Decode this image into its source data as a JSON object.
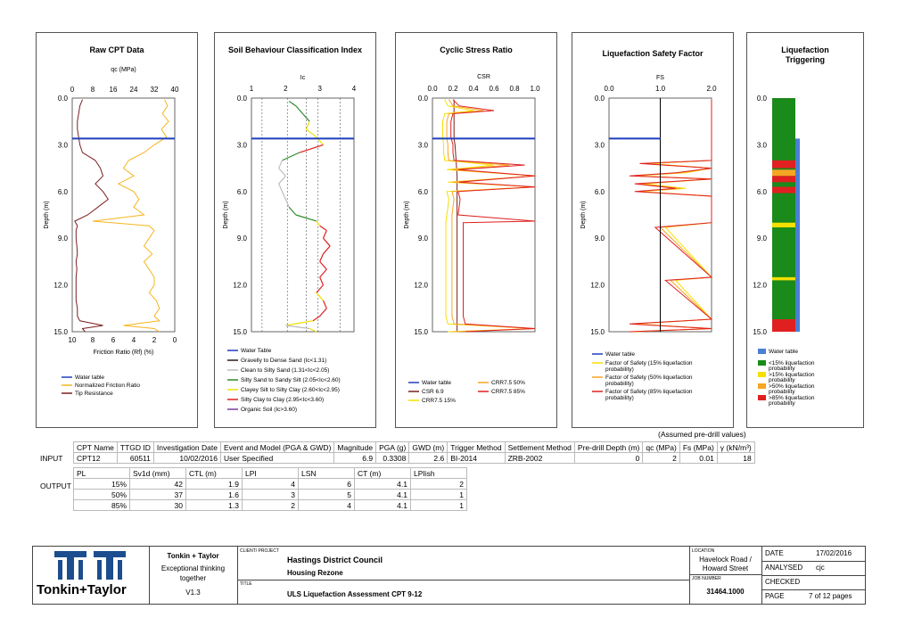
{
  "panels": {
    "raw": {
      "title": "Raw CPT Data",
      "top_label": "qc (MPa)",
      "top_ticks": [
        "0",
        "8",
        "16",
        "24",
        "32",
        "40"
      ],
      "bottom_ticks": [
        "10",
        "8",
        "6",
        "4",
        "2",
        "0"
      ],
      "bottom_label": "Friction Ratio (Rf) (%)",
      "legend": [
        "Water table",
        "Normalized Friction Ratio",
        "Tip Resistance"
      ]
    },
    "sbt": {
      "title": "Soil Behaviour Classification Index",
      "top_label": "Ic",
      "top_ticks": [
        "1",
        "2",
        "3",
        "4"
      ],
      "legend": [
        "Water Table",
        "Gravelly to Dense Sand (Ic<1.31)",
        "Clean to Silty Sand (1.31<Ic<2.05)",
        "Silty Sand to Sandy Silt (2.05<Ic<2.60)",
        "Clayey Silt to Silty Clay (2.60<Ic<2.95)",
        "Silty Clay to Clay (2.95<Ic<3.60)",
        "Organic Soil (Ic>3.60)"
      ]
    },
    "csr": {
      "title": "Cyclic Stress Ratio",
      "top_label": "CSR",
      "top_ticks": [
        "0.0",
        "0.2",
        "0.4",
        "0.6",
        "0.8",
        "1.0"
      ],
      "legend": [
        "Water table",
        "CSR 6.9",
        "CRR7.5 15%",
        "CRR7.5 50%",
        "CRR7.5 85%"
      ]
    },
    "fs": {
      "title": "Liquefaction Safety Factor",
      "top_label": "FS",
      "top_ticks": [
        "0.0",
        "1.0",
        "2.0"
      ],
      "legend": [
        "Water table",
        "Factor of Safety (15% liquefaction probability)",
        "Factor of Safety (50% liquefaction probability)",
        "Factor of Safety (85% liquefaction probability)"
      ]
    },
    "trig": {
      "title_lines": [
        "Liquefaction",
        "Triggering"
      ],
      "legend": [
        "Water table",
        "<15% liquefaction probability",
        ">15% liquefaction probability",
        ">50% liquefaction probability",
        ">85% liquefaction probability"
      ]
    }
  },
  "depth_axis": {
    "label": "Depth (m)",
    "ticks": [
      "0.0",
      "3.0",
      "6.0",
      "9.0",
      "12.0",
      "15.0"
    ],
    "range": [
      0,
      15
    ],
    "water_table": 2.6
  },
  "colors": {
    "water": "#1f3fbf",
    "tip": "#7a1f1f",
    "friction": "#f5b520",
    "fs15": "#f7e000",
    "fs50": "#f5a623",
    "fs85": "#e02020",
    "trig_base": "#1a8a1a",
    "trig_wt": "#4a7fd6"
  },
  "chart_data": [
    {
      "type": "line",
      "title": "Raw CPT Data",
      "xlabel": "qc (MPa)",
      "x2label": "Friction Ratio (Rf) (%)",
      "ylabel": "Depth (m)",
      "xlim": [
        0,
        40
      ],
      "x2lim": [
        10,
        0
      ],
      "ylim": [
        15,
        0
      ],
      "series": [
        {
          "name": "Tip Resistance",
          "depth": [
            0.1,
            0.5,
            1.0,
            1.5,
            2.0,
            2.5,
            3.0,
            3.5,
            4.0,
            4.5,
            5.0,
            5.5,
            6.0,
            6.5,
            7.0,
            7.5,
            7.9,
            8.2,
            8.5,
            9.0,
            9.5,
            10.0,
            10.5,
            11.0,
            11.5,
            12.0,
            12.5,
            13.0,
            13.5,
            14.0,
            14.3,
            14.6,
            14.8,
            15.0
          ],
          "qc": [
            4,
            3,
            2.5,
            2,
            2,
            2.5,
            3,
            4,
            9,
            11,
            12,
            9,
            12,
            14,
            10,
            6,
            1,
            2,
            1.5,
            1.5,
            1.8,
            2,
            1.5,
            1.8,
            1.5,
            1.5,
            1.5,
            1.5,
            2,
            2,
            3,
            12,
            4,
            5
          ]
        },
        {
          "name": "Normalized Friction Ratio",
          "depth": [
            0.1,
            0.5,
            1.0,
            1.5,
            2.0,
            2.5,
            3.0,
            3.5,
            4.0,
            4.5,
            5.0,
            5.5,
            6.0,
            6.5,
            7.0,
            7.5,
            7.9,
            8.2,
            8.5,
            9.0,
            9.5,
            10.0,
            10.5,
            11.0,
            11.5,
            12.0,
            12.5,
            13.0,
            13.5,
            14.0,
            14.3,
            14.6,
            14.8,
            15.0
          ],
          "rf": [
            1,
            0.7,
            1.2,
            0.6,
            1.3,
            0.8,
            2,
            3,
            4.5,
            5,
            4,
            5.5,
            4,
            3.5,
            4,
            3,
            8,
            2.5,
            2,
            2.5,
            3,
            2.2,
            3,
            2.5,
            2,
            2,
            2.5,
            1.8,
            1.5,
            2,
            1.5,
            5,
            2,
            1.5
          ]
        }
      ]
    },
    {
      "type": "line",
      "title": "Soil Behaviour Classification Index",
      "xlabel": "Ic",
      "ylabel": "Depth (m)",
      "xlim": [
        1,
        4
      ],
      "ylim": [
        15,
        0
      ],
      "series": [
        {
          "name": "Ic",
          "depth": [
            0.2,
            0.5,
            1.0,
            1.5,
            2.0,
            2.5,
            3.0,
            3.5,
            4.0,
            4.5,
            5.0,
            5.5,
            6.0,
            6.5,
            7.0,
            7.5,
            7.9,
            8.2,
            8.5,
            9.0,
            9.5,
            10.0,
            10.5,
            11.0,
            11.5,
            12.0,
            12.5,
            13.0,
            13.5,
            14.0,
            14.3,
            14.6,
            14.8,
            15.0
          ],
          "ic": [
            2.1,
            2.3,
            2.5,
            2.7,
            2.6,
            2.9,
            3.1,
            2.4,
            1.9,
            1.8,
            2.0,
            1.8,
            1.9,
            2.0,
            2.1,
            2.3,
            2.9,
            3.0,
            3.2,
            3.1,
            3.3,
            3.1,
            3.0,
            3.2,
            3.0,
            3.1,
            2.9,
            3.1,
            3.2,
            3.0,
            2.8,
            2.0,
            2.7,
            2.9
          ]
        }
      ]
    },
    {
      "type": "line",
      "title": "Cyclic Stress Ratio",
      "xlabel": "CSR",
      "ylabel": "Depth (m)",
      "xlim": [
        0,
        1
      ],
      "ylim": [
        15,
        0
      ],
      "series": [
        {
          "name": "CSR 6.9",
          "depth": [
            0.1,
            1.0,
            2.0,
            2.6,
            3.0,
            4.0,
            5.0,
            6.0,
            7.0,
            8.0,
            9.0,
            10.0,
            11.0,
            12.0,
            13.0,
            14.0,
            15.0
          ],
          "csr": [
            0.21,
            0.21,
            0.21,
            0.21,
            0.22,
            0.23,
            0.24,
            0.24,
            0.24,
            0.24,
            0.24,
            0.24,
            0.24,
            0.24,
            0.24,
            0.24,
            0.24
          ]
        },
        {
          "name": "CRR7.5 15%",
          "depth": [
            0.1,
            0.5,
            0.8,
            1.0,
            1.5,
            2.0,
            2.5,
            3.0,
            3.5,
            4.0,
            4.3,
            4.6,
            5.0,
            5.4,
            5.7,
            6.0,
            6.5,
            7.0,
            7.5,
            8.0,
            9.0,
            10.0,
            11.0,
            12.0,
            13.0,
            14.0,
            14.5,
            14.8,
            15.0
          ],
          "crr": [
            0.12,
            0.15,
            0.4,
            0.12,
            0.1,
            0.1,
            0.1,
            0.11,
            0.11,
            0.12,
            0.6,
            0.14,
            1.0,
            0.15,
            1.0,
            0.14,
            0.16,
            0.15,
            0.14,
            0.13,
            0.13,
            0.13,
            0.13,
            0.13,
            0.13,
            0.13,
            0.15,
            1.0,
            0.15
          ]
        },
        {
          "name": "CRR7.5 50%",
          "depth": [
            0.1,
            0.5,
            0.8,
            1.0,
            1.5,
            2.0,
            2.5,
            3.0,
            3.5,
            4.0,
            4.3,
            4.6,
            5.0,
            5.4,
            5.7,
            6.0,
            6.5,
            7.0,
            7.5,
            8.0,
            9.0,
            10.0,
            11.0,
            12.0,
            13.0,
            14.0,
            14.5,
            14.8,
            15.0
          ],
          "crr": [
            0.16,
            0.2,
            0.5,
            0.16,
            0.14,
            0.14,
            0.14,
            0.15,
            0.15,
            0.16,
            0.75,
            0.19,
            1.0,
            0.2,
            1.0,
            0.19,
            0.21,
            0.2,
            0.19,
            0.19,
            0.19,
            0.19,
            0.19,
            0.19,
            0.19,
            0.19,
            0.21,
            1.0,
            0.21
          ]
        },
        {
          "name": "CRR7.5 85%",
          "depth": [
            0.1,
            0.5,
            0.8,
            1.0,
            1.5,
            2.0,
            2.5,
            3.0,
            3.5,
            4.0,
            4.3,
            4.6,
            5.0,
            5.4,
            5.7,
            6.0,
            6.5,
            7.0,
            7.5,
            7.9,
            8.0,
            9.0,
            10.0,
            11.0,
            12.0,
            13.0,
            14.0,
            14.5,
            14.8,
            15.0
          ],
          "crr": [
            0.2,
            0.26,
            0.6,
            0.2,
            0.18,
            0.18,
            0.18,
            0.2,
            0.2,
            0.21,
            0.9,
            0.25,
            1.0,
            0.26,
            1.0,
            0.25,
            0.27,
            0.26,
            0.25,
            1.0,
            0.3,
            0.3,
            0.3,
            0.3,
            0.3,
            0.3,
            0.3,
            0.32,
            1.0,
            0.32
          ]
        }
      ]
    },
    {
      "type": "line",
      "title": "Liquefaction Safety Factor",
      "xlabel": "FS",
      "ylabel": "Depth (m)",
      "xlim": [
        0,
        2
      ],
      "ylim": [
        15,
        0
      ],
      "series": [
        {
          "name": "Factor of Safety (15% liquefaction probability)",
          "depth": [
            0.1,
            4.0,
            4.2,
            4.5,
            4.8,
            5.0,
            5.2,
            5.5,
            5.8,
            6.0,
            6.3,
            8.0,
            8.3,
            11.5,
            11.7,
            14.2,
            14.5,
            14.8,
            15.0
          ],
          "fs": [
            2.0,
            2.0,
            0.8,
            2.0,
            1.5,
            0.5,
            2.0,
            0.7,
            1.5,
            0.6,
            2.0,
            2.0,
            1.1,
            2.0,
            1.3,
            2.0,
            0.5,
            2.0,
            0.5
          ]
        },
        {
          "name": "Factor of Safety (50% liquefaction probability)",
          "depth": [
            0.1,
            4.0,
            4.2,
            4.5,
            4.8,
            5.0,
            5.2,
            5.5,
            5.8,
            6.0,
            6.3,
            8.0,
            8.3,
            11.5,
            11.7,
            14.2,
            14.5,
            14.8,
            15.0
          ],
          "fs": [
            2.0,
            2.0,
            0.7,
            2.0,
            1.4,
            0.45,
            2.0,
            0.6,
            1.4,
            0.55,
            2.0,
            2.0,
            1.0,
            2.0,
            1.2,
            2.0,
            0.45,
            2.0,
            0.45
          ]
        },
        {
          "name": "Factor of Safety (85% liquefaction probability)",
          "depth": [
            0.1,
            4.0,
            4.2,
            4.5,
            4.8,
            5.0,
            5.2,
            5.5,
            5.8,
            6.0,
            6.3,
            8.0,
            8.3,
            11.5,
            11.7,
            14.2,
            14.5,
            14.8,
            15.0
          ],
          "fs": [
            2.0,
            2.0,
            0.6,
            2.0,
            1.3,
            0.4,
            2.0,
            0.5,
            1.3,
            0.5,
            2.0,
            2.0,
            0.9,
            2.0,
            1.1,
            2.0,
            0.4,
            2.0,
            0.4
          ]
        }
      ]
    },
    {
      "type": "bar",
      "title": "Liquefaction Triggering",
      "ylabel": "Depth (m)",
      "ylim": [
        15,
        0
      ],
      "bands": [
        {
          "from": 4.0,
          "to": 4.5,
          "class": ">85% liquefaction probability"
        },
        {
          "from": 4.6,
          "to": 5.0,
          "class": ">50% liquefaction probability"
        },
        {
          "from": 5.0,
          "to": 5.4,
          "class": ">85% liquefaction probability"
        },
        {
          "from": 5.7,
          "to": 6.1,
          "class": ">85% liquefaction probability"
        },
        {
          "from": 8.0,
          "to": 8.3,
          "class": ">15% liquefaction probability"
        },
        {
          "from": 11.5,
          "to": 11.7,
          "class": ">15% liquefaction probability"
        },
        {
          "from": 14.2,
          "to": 15.0,
          "class": ">85% liquefaction probability"
        }
      ]
    }
  ],
  "assumed_note": "(Assumed pre-drill values)",
  "input": {
    "label": "INPUT",
    "headers": [
      "CPT Name",
      "TTGD ID",
      "Investigation Date",
      "Event and Model (PGA & GWD)",
      "Magnitude",
      "PGA (g)",
      "GWD (m)",
      "Trigger Method",
      "Settlement Method",
      "Pre-drill Depth (m)",
      "qc (MPa)",
      "Fs (MPa)",
      "γ (kN/m³)"
    ],
    "row": [
      "CPT12",
      "60511",
      "10/02/2016",
      "User Specified",
      "6.9",
      "0.3308",
      "2.6",
      "BI-2014",
      "ZRB-2002",
      "0",
      "2",
      "0.01",
      "18"
    ]
  },
  "output": {
    "label": "OUTPUT",
    "headers": [
      "PL",
      "Sv1d (mm)",
      "CTL (m)",
      "LPI",
      "LSN",
      "CT (m)",
      "LPIish"
    ],
    "rows": [
      [
        "15%",
        "42",
        "1.9",
        "4",
        "6",
        "4.1",
        "2"
      ],
      [
        "50%",
        "37",
        "1.6",
        "3",
        "5",
        "4.1",
        "1"
      ],
      [
        "85%",
        "30",
        "1.3",
        "2",
        "4",
        "4.1",
        "1"
      ]
    ]
  },
  "titleblock": {
    "company": "Tonkin + Taylor",
    "tagline1": "Exceptional thinking",
    "tagline2": "together",
    "version": "V1.3",
    "logo_text": "Tonkin+Taylor",
    "client_lbl": "CLIENT/ PROJECT",
    "client": "Hastings District Council",
    "project": "Housing Rezone",
    "title_lbl": "TITLE",
    "title": "ULS Liquefaction Assessment CPT 9-12",
    "location_lbl": "LOCATION",
    "location1": "Havelock Road /",
    "location2": "Howard Street",
    "job_lbl": "JOB NUMBER",
    "job": "31464.1000",
    "date_lbl": "DATE",
    "date": "17/02/2016",
    "analysed_lbl": "ANALYSED",
    "analysed": "cjc",
    "checked_lbl": "CHECKED",
    "checked": "",
    "page_lbl": "PAGE",
    "page": "7 of 12 pages"
  }
}
